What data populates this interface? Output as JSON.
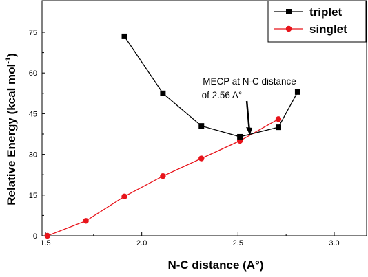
{
  "chart_data": {
    "type": "line",
    "xlabel": "N-C distance (A°)",
    "ylabel": "Relative Energy (kcal mol",
    "ylabel_sup": "-1",
    "ylabel_suffix": ")",
    "xlim": [
      1.5,
      3.0
    ],
    "ylim": [
      0,
      75
    ],
    "xticks": [
      1.5,
      2.0,
      2.5,
      3.0
    ],
    "xtick_labels": [
      "1.5",
      "2.0",
      "2.5",
      "3.0"
    ],
    "yticks": [
      0,
      15,
      30,
      45,
      60,
      75
    ],
    "ytick_labels": [
      "0",
      "15",
      "30",
      "45",
      "60",
      "75"
    ],
    "grid": false,
    "legend_position": "top-right",
    "series": [
      {
        "name": "triplet",
        "color": "#000000",
        "marker": "square",
        "x": [
          1.91,
          2.11,
          2.31,
          2.51,
          2.71,
          2.81
        ],
        "y": [
          73.5,
          52.5,
          40.5,
          36.5,
          40.0,
          53.0
        ]
      },
      {
        "name": "singlet",
        "color": "#e8141b",
        "marker": "circle",
        "x": [
          1.51,
          1.71,
          1.91,
          2.11,
          2.31,
          2.51,
          2.71
        ],
        "y": [
          0.0,
          5.5,
          14.5,
          22.0,
          28.5,
          35.0,
          43.0
        ]
      }
    ],
    "annotation": {
      "line1": "MECP at N-C distance",
      "line2": "of 2.56 A°",
      "x": 2.56,
      "y": 36.5
    }
  }
}
